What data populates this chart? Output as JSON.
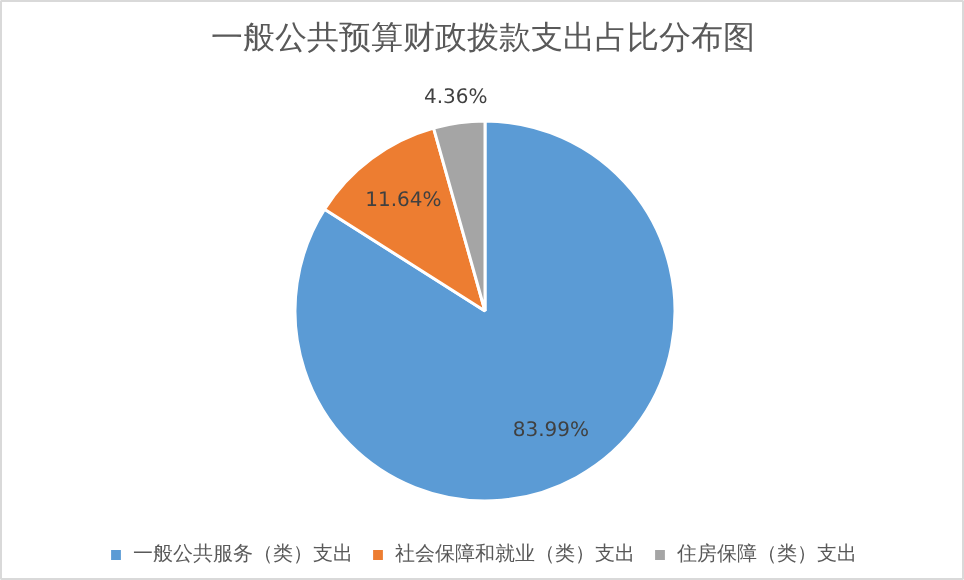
{
  "chart_data": {
    "type": "pie",
    "title": "一般公共预算财政拨款支出占比分布图",
    "categories": [
      "一般公共服务（类）支出",
      "社会保障和就业（类）支出",
      "住房保障（类）支出"
    ],
    "values": [
      83.99,
      11.64,
      4.36
    ],
    "colors": [
      "#5b9bd5",
      "#ed7d31",
      "#a5a5a5"
    ],
    "value_labels": [
      "83.99%",
      "11.64%",
      "4.36%"
    ],
    "legend": "bottom"
  }
}
